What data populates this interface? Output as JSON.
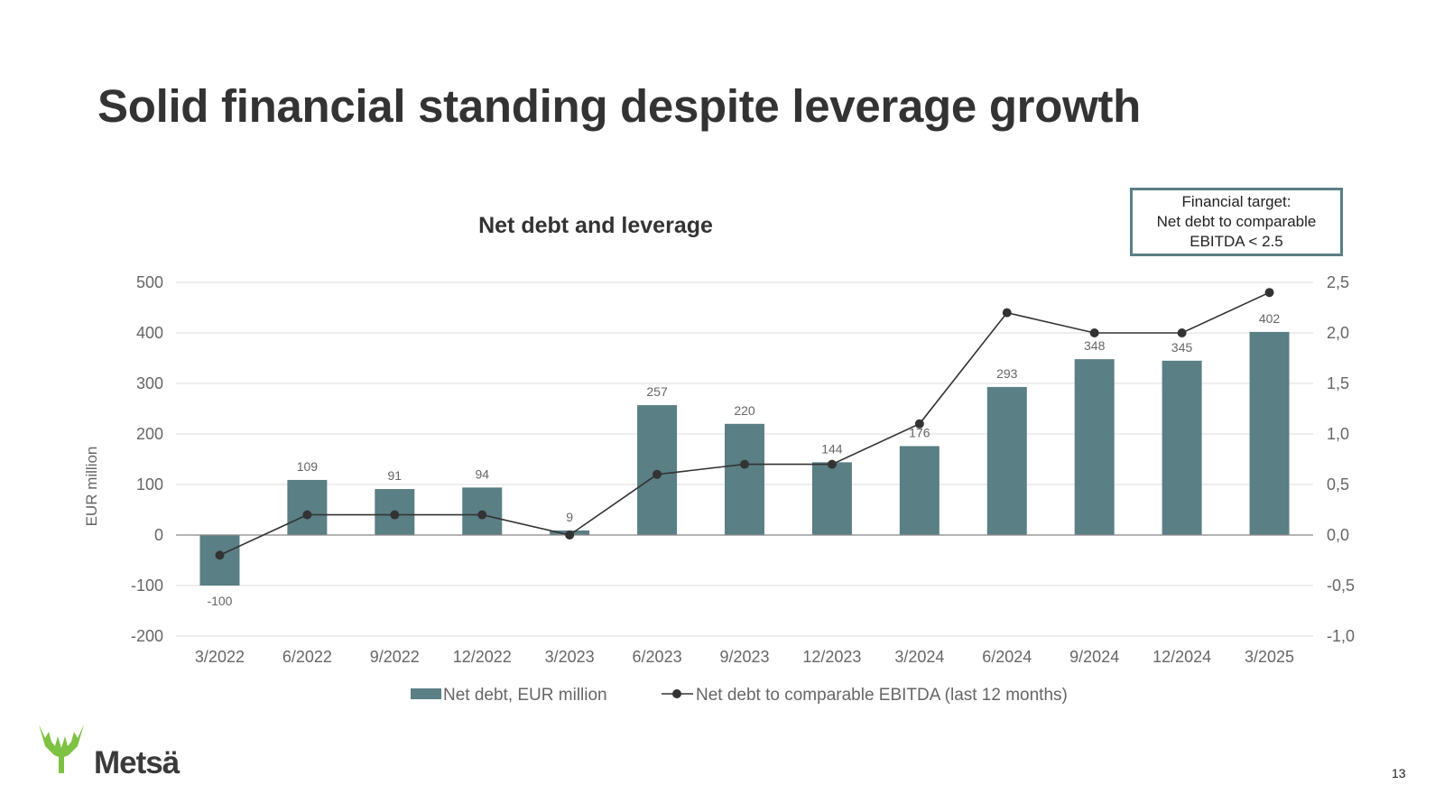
{
  "slide": {
    "title": "Solid financial standing despite leverage growth",
    "page_number": "13"
  },
  "target_box": {
    "line1": "Financial target:",
    "line2": "Net debt to comparable",
    "line3": "EBITDA < 2.5"
  },
  "logo": {
    "text": "Metsä",
    "icon": "moose-antler-icon",
    "color": "#7dc242"
  },
  "chart_data": {
    "type": "bar",
    "title": "Net debt and leverage",
    "categories": [
      "3/2022",
      "6/2022",
      "9/2022",
      "12/2022",
      "3/2023",
      "6/2023",
      "9/2023",
      "12/2023",
      "3/2024",
      "6/2024",
      "9/2024",
      "12/2024",
      "3/2025"
    ],
    "series": [
      {
        "name": "Net debt, EUR million",
        "type": "bar",
        "axis": "left",
        "color": "#5a7f85",
        "values": [
          -100,
          109,
          91,
          94,
          9,
          257,
          220,
          144,
          176,
          293,
          348,
          345,
          402
        ],
        "labels": [
          "-100",
          "109",
          "91",
          "94",
          "9",
          "257",
          "220",
          "144",
          "176",
          "293",
          "348",
          "345",
          "402"
        ]
      },
      {
        "name": "Net debt to comparable EBITDA (last 12 months)",
        "type": "line",
        "axis": "right",
        "color": "#333333",
        "values": [
          -0.2,
          0.2,
          0.2,
          0.2,
          0.0,
          0.6,
          0.7,
          0.7,
          1.1,
          2.2,
          2.0,
          2.0,
          2.4
        ]
      }
    ],
    "ylabel": "EUR million",
    "ylim": [
      -200,
      500
    ],
    "yticks": [
      500,
      400,
      300,
      200,
      100,
      0,
      -100,
      -200
    ],
    "ytick_labels": [
      "500",
      "400",
      "300",
      "200",
      "100",
      "0",
      "-100",
      "-200"
    ],
    "y2lim": [
      -1.0,
      2.5
    ],
    "y2tick_labels": [
      "2,5",
      "2,0",
      "1,5",
      "1,0",
      "0,5",
      "0,0",
      "-0,5",
      "-1,0"
    ],
    "grid": true,
    "legend_position": "bottom-center"
  }
}
